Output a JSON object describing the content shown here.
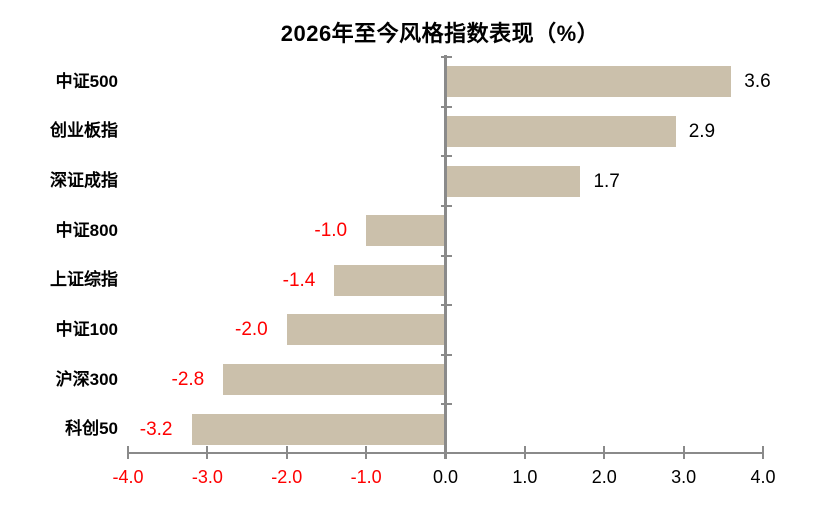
{
  "chart_data": {
    "type": "bar",
    "orientation": "horizontal",
    "title": "2026年至今风格指数表现（%）",
    "categories": [
      "中证500",
      "创业板指",
      "深证成指",
      "中证800",
      "上证综指",
      "中证100",
      "沪深300",
      "科创50"
    ],
    "values": [
      3.6,
      2.9,
      1.7,
      -1.0,
      -1.4,
      -2.0,
      -2.8,
      -3.2
    ],
    "value_labels": [
      "3.6",
      "2.9",
      "1.7",
      "-1.0",
      "-1.4",
      "-2.0",
      "-2.8",
      "-3.2"
    ],
    "xlim": [
      -4.0,
      4.0
    ],
    "x_ticks": [
      "-4.0",
      "-3.0",
      "-2.0",
      "-1.0",
      "0.0",
      "1.0",
      "2.0",
      "3.0",
      "4.0"
    ],
    "grid": false,
    "legend": "none",
    "colors": {
      "bar": "#CBC0AB",
      "axis": "#8A8A8A",
      "negative_text": "#FF0000",
      "positive_text": "#000000"
    }
  }
}
